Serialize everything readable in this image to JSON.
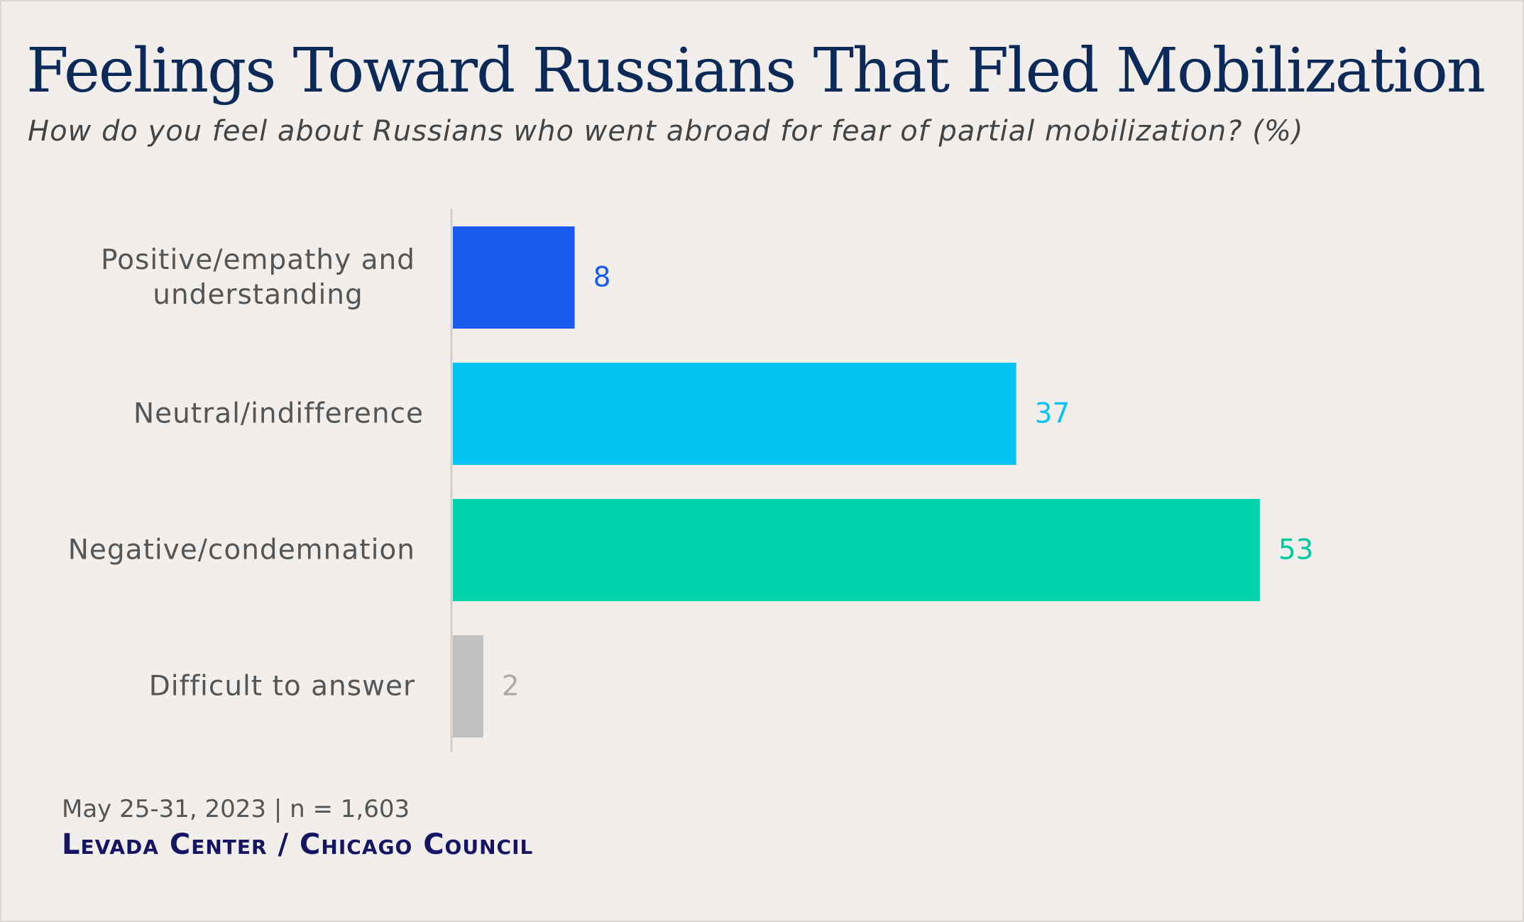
{
  "title": "Feelings Toward Russians That Fled Mobilization",
  "subtitle": "How do you feel about Russians who went abroad for fear of partial mobilization? (%)",
  "footer": {
    "date_note": "May 25-31, 2023 | n = 1,603",
    "source": "Levada Center / Chicago Council"
  },
  "chart_data": {
    "type": "bar",
    "orientation": "horizontal",
    "categories": [
      [
        "Positive/empathy and",
        "understanding"
      ],
      [
        "Neutral/indifference"
      ],
      [
        "Negative/condemnation"
      ],
      [
        "Difficult to answer"
      ]
    ],
    "values": [
      8,
      37,
      53,
      2
    ],
    "colors": [
      "#1a5cf0",
      "#03c3f3",
      "#00d4aa",
      "#c0c0c0"
    ],
    "label_colors": [
      "#1a5cf0",
      "#03c3f3",
      "#00c9a0",
      "#aaaaaa"
    ],
    "xlim": [
      0,
      100
    ],
    "grid": false,
    "legend": false
  }
}
